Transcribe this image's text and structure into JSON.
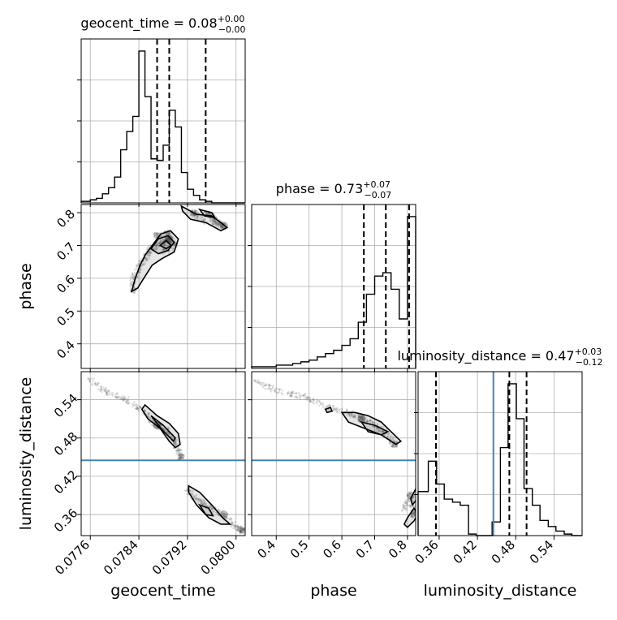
{
  "chart_data": {
    "type": "corner",
    "parameters": [
      "geocent_time",
      "phase",
      "luminosity_distance"
    ],
    "titles": [
      {
        "param": "geocent_time",
        "prefix": "geocent_time = ",
        "value": "0.08",
        "plus": "+0.00",
        "minus": "−0.00"
      },
      {
        "param": "phase",
        "prefix": "phase = ",
        "value": "0.73",
        "plus": "+0.07",
        "minus": "−0.07"
      },
      {
        "param": "luminosity_distance",
        "prefix": "luminosity_distance = ",
        "value": "0.47",
        "plus": "+0.03",
        "minus": "−0.12"
      }
    ],
    "axis_labels": [
      "geocent_time",
      "phase",
      "luminosity_distance"
    ],
    "ranges": {
      "geocent_time": [
        0.07745,
        0.08015
      ],
      "phase": [
        0.325,
        0.825
      ],
      "luminosity_distance": [
        0.327,
        0.584
      ]
    },
    "ticks": {
      "geocent_time": {
        "values": [
          0.0776,
          0.0784,
          0.0792,
          0.08
        ],
        "labels": [
          "0.0776",
          "0.0784",
          "0.0792",
          "0.0800"
        ]
      },
      "phase": {
        "values": [
          0.4,
          0.5,
          0.6,
          0.7,
          0.8
        ],
        "labels": [
          "0.4",
          "0.5",
          "0.6",
          "0.7",
          "0.8"
        ]
      },
      "luminosity_distance": {
        "values": [
          0.36,
          0.42,
          0.48,
          0.54
        ],
        "labels": [
          "0.36",
          "0.42",
          "0.48",
          "0.54"
        ]
      }
    },
    "truth": {
      "luminosity_distance": 0.445
    },
    "truth_color": "#4682b4",
    "quantiles": {
      "geocent_time": [
        0.0787,
        0.0789,
        0.0795
      ],
      "phase": [
        0.667,
        0.734,
        0.805
      ],
      "luminosity_distance": [
        0.355,
        0.47,
        0.497
      ]
    },
    "histograms": {
      "geocent_time": {
        "edges": [
          0.07745,
          0.0776,
          0.0777,
          0.0778,
          0.0779,
          0.078,
          0.0781,
          0.0782,
          0.0783,
          0.0784,
          0.0785,
          0.0786,
          0.0787,
          0.0788,
          0.0789,
          0.079,
          0.0791,
          0.0792,
          0.0793,
          0.0794,
          0.0795,
          0.0796,
          0.0797,
          0.0798,
          0.0799,
          0.08,
          0.08015
        ],
        "counts": [
          0.01,
          0.02,
          0.03,
          0.06,
          0.1,
          0.17,
          0.35,
          0.47,
          0.57,
          1.0,
          0.7,
          0.29,
          0.28,
          0.38,
          0.61,
          0.5,
          0.2,
          0.09,
          0.05,
          0.02,
          0.01,
          0.0,
          0.0,
          0.0,
          0.0,
          0.0
        ]
      },
      "phase": {
        "edges": [
          0.325,
          0.35,
          0.375,
          0.4,
          0.425,
          0.45,
          0.475,
          0.5,
          0.525,
          0.55,
          0.575,
          0.6,
          0.625,
          0.65,
          0.675,
          0.7,
          0.725,
          0.75,
          0.775,
          0.8,
          0.825
        ],
        "counts": [
          0.01,
          0.01,
          0.01,
          0.02,
          0.02,
          0.03,
          0.04,
          0.05,
          0.07,
          0.09,
          0.11,
          0.14,
          0.18,
          0.28,
          0.45,
          0.56,
          0.58,
          0.48,
          0.3,
          0.92
        ]
      },
      "luminosity_distance": {
        "edges": [
          0.327,
          0.343,
          0.356,
          0.368,
          0.381,
          0.393,
          0.406,
          0.418,
          0.431,
          0.443,
          0.456,
          0.468,
          0.481,
          0.493,
          0.506,
          0.518,
          0.531,
          0.543,
          0.556,
          0.568,
          0.584
        ],
        "counts": [
          0.29,
          0.49,
          0.34,
          0.24,
          0.22,
          0.2,
          0.01,
          0.0,
          0.0,
          0.09,
          0.58,
          1.0,
          0.77,
          0.31,
          0.2,
          0.1,
          0.06,
          0.03,
          0.01,
          0.0
        ]
      }
    },
    "joint": [
      {
        "x": "geocent_time",
        "y": "phase",
        "clusters": [
          {
            "points": [
              [
                0.0783,
                0.56
              ],
              [
                0.0783,
                0.6
              ],
              [
                0.0784,
                0.63
              ],
              [
                0.0785,
                0.66
              ],
              [
                0.0786,
                0.69
              ],
              [
                0.0788,
                0.71
              ],
              [
                0.0789,
                0.72
              ],
              [
                0.079,
                0.7
              ],
              [
                0.0788,
                0.68
              ],
              [
                0.0789,
                0.74
              ],
              [
                0.0787,
                0.73
              ]
            ],
            "level": 0.9
          },
          {
            "points": [
              [
                0.0795,
                0.8
              ],
              [
                0.0796,
                0.79
              ],
              [
                0.0797,
                0.77
              ],
              [
                0.0798,
                0.76
              ],
              [
                0.0794,
                0.78
              ],
              [
                0.0793,
                0.8
              ]
            ],
            "level": 0.7
          }
        ],
        "contours": [
          [
            [
              0.07828,
              0.56
            ],
            [
              0.07834,
              0.6
            ],
            [
              0.07842,
              0.64
            ],
            [
              0.0785,
              0.67
            ],
            [
              0.07862,
              0.7
            ],
            [
              0.07876,
              0.735
            ],
            [
              0.07892,
              0.745
            ],
            [
              0.07905,
              0.72
            ],
            [
              0.07898,
              0.68
            ],
            [
              0.07878,
              0.66
            ],
            [
              0.07862,
              0.64
            ],
            [
              0.07848,
              0.6
            ],
            [
              0.07838,
              0.57
            ],
            [
              0.07828,
              0.56
            ]
          ],
          [
            [
              0.0786,
              0.69
            ],
            [
              0.07872,
              0.72
            ],
            [
              0.07888,
              0.73
            ],
            [
              0.07898,
              0.71
            ],
            [
              0.07888,
              0.685
            ],
            [
              0.07872,
              0.675
            ],
            [
              0.0786,
              0.69
            ]
          ],
          [
            [
              0.07875,
              0.7
            ],
            [
              0.07885,
              0.715
            ],
            [
              0.07893,
              0.7
            ],
            [
              0.07885,
              0.69
            ],
            [
              0.07875,
              0.7
            ]
          ],
          [
            [
              0.0791,
              0.82
            ],
            [
              0.07935,
              0.795
            ],
            [
              0.0796,
              0.79
            ],
            [
              0.07975,
              0.77
            ],
            [
              0.07985,
              0.755
            ],
            [
              0.07975,
              0.745
            ],
            [
              0.0795,
              0.77
            ],
            [
              0.07925,
              0.78
            ],
            [
              0.07912,
              0.805
            ],
            [
              0.0791,
              0.82
            ]
          ],
          [
            [
              0.0794,
              0.81
            ],
            [
              0.0796,
              0.8
            ],
            [
              0.07965,
              0.785
            ],
            [
              0.07948,
              0.79
            ],
            [
              0.0794,
              0.81
            ]
          ]
        ]
      },
      {
        "x": "geocent_time",
        "y": "luminosity_distance",
        "clusters": [
          {
            "points": [
              [
                0.0776,
                0.57
              ],
              [
                0.0779,
                0.55
              ],
              [
                0.0782,
                0.54
              ],
              [
                0.0785,
                0.52
              ],
              [
                0.0787,
                0.5
              ],
              [
                0.0789,
                0.49
              ],
              [
                0.079,
                0.47
              ],
              [
                0.0791,
                0.45
              ]
            ],
            "level": 0.9
          },
          {
            "points": [
              [
                0.0792,
                0.4
              ],
              [
                0.0794,
                0.38
              ],
              [
                0.0796,
                0.37
              ],
              [
                0.0798,
                0.36
              ],
              [
                0.08,
                0.34
              ],
              [
                0.0801,
                0.335
              ]
            ],
            "level": 0.6
          }
        ],
        "contours": [
          [
            [
              0.07845,
              0.525
            ],
            [
              0.07855,
              0.51
            ],
            [
              0.07875,
              0.495
            ],
            [
              0.0789,
              0.475
            ],
            [
              0.079,
              0.465
            ],
            [
              0.07908,
              0.47
            ],
            [
              0.07905,
              0.487
            ],
            [
              0.0789,
              0.503
            ],
            [
              0.0787,
              0.515
            ],
            [
              0.0785,
              0.532
            ],
            [
              0.07845,
              0.525
            ]
          ],
          [
            [
              0.0786,
              0.515
            ],
            [
              0.0788,
              0.5
            ],
            [
              0.079,
              0.48
            ],
            [
              0.07897,
              0.475
            ],
            [
              0.07878,
              0.493
            ],
            [
              0.0786,
              0.515
            ]
          ],
          [
            [
              0.07922,
              0.405
            ],
            [
              0.0794,
              0.395
            ],
            [
              0.0796,
              0.375
            ],
            [
              0.07978,
              0.355
            ],
            [
              0.0799,
              0.345
            ],
            [
              0.07975,
              0.345
            ],
            [
              0.07955,
              0.355
            ],
            [
              0.07935,
              0.375
            ],
            [
              0.07922,
              0.395
            ],
            [
              0.07922,
              0.405
            ]
          ],
          [
            [
              0.0794,
              0.375
            ],
            [
              0.0795,
              0.36
            ],
            [
              0.07962,
              0.358
            ],
            [
              0.07955,
              0.37
            ],
            [
              0.0794,
              0.375
            ]
          ]
        ]
      },
      {
        "x": "phase",
        "y": "luminosity_distance",
        "clusters": [
          {
            "points": [
              [
                0.33,
                0.57
              ],
              [
                0.4,
                0.555
              ],
              [
                0.48,
                0.545
              ],
              [
                0.55,
                0.53
              ],
              [
                0.62,
                0.52
              ],
              [
                0.66,
                0.51
              ],
              [
                0.7,
                0.5
              ],
              [
                0.73,
                0.49
              ],
              [
                0.76,
                0.47
              ]
            ],
            "level": 0.9
          },
          {
            "points": [
              [
                0.79,
                0.37
              ],
              [
                0.81,
                0.39
              ],
              [
                0.82,
                0.36
              ]
            ],
            "level": 0.6
          }
        ],
        "contours": [
          [
            [
              0.6,
              0.52
            ],
            [
              0.64,
              0.52
            ],
            [
              0.68,
              0.515
            ],
            [
              0.72,
              0.505
            ],
            [
              0.76,
              0.485
            ],
            [
              0.78,
              0.475
            ],
            [
              0.765,
              0.47
            ],
            [
              0.72,
              0.485
            ],
            [
              0.67,
              0.495
            ],
            [
              0.62,
              0.505
            ],
            [
              0.6,
              0.52
            ]
          ],
          [
            [
              0.66,
              0.505
            ],
            [
              0.7,
              0.5
            ],
            [
              0.74,
              0.49
            ],
            [
              0.72,
              0.485
            ],
            [
              0.68,
              0.49
            ],
            [
              0.66,
              0.505
            ]
          ],
          [
            [
              0.55,
              0.525
            ],
            [
              0.565,
              0.528
            ],
            [
              0.57,
              0.522
            ],
            [
              0.555,
              0.52
            ],
            [
              0.55,
              0.525
            ]
          ],
          [
            [
              0.79,
              0.345
            ],
            [
              0.8,
              0.355
            ],
            [
              0.82,
              0.37
            ],
            [
              0.83,
              0.36
            ],
            [
              0.82,
              0.35
            ],
            [
              0.8,
              0.34
            ],
            [
              0.79,
              0.345
            ]
          ],
          [
            [
              0.81,
              0.385
            ],
            [
              0.825,
              0.4
            ],
            [
              0.83,
              0.385
            ],
            [
              0.815,
              0.375
            ],
            [
              0.81,
              0.385
            ]
          ]
        ]
      }
    ]
  }
}
